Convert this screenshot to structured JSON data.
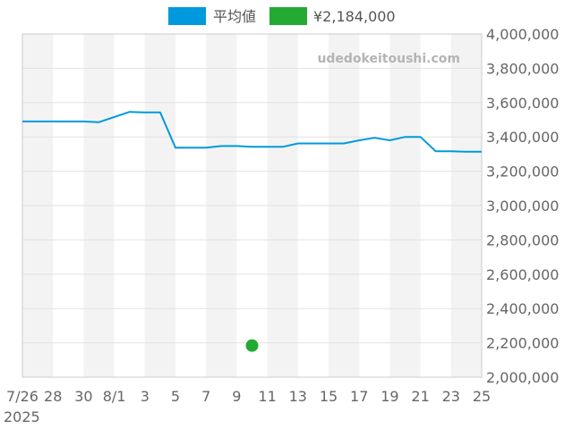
{
  "chart_data": {
    "type": "line",
    "watermark": "udedokeitoushi.com",
    "legend_position": "top",
    "grid": true,
    "ylim": [
      2000000,
      4000000
    ],
    "y_ticks": [
      "4,000,000",
      "3,800,000",
      "3,600,000",
      "3,400,000",
      "3,200,000",
      "3,000,000",
      "2,800,000",
      "2,600,000",
      "2,400,000",
      "2,200,000",
      "2,000,000"
    ],
    "y_tick_values": [
      4000000,
      3800000,
      3600000,
      3400000,
      3200000,
      3000000,
      2800000,
      2600000,
      2400000,
      2200000,
      2000000
    ],
    "x_tick_labels": [
      "7/26",
      "28",
      "30",
      "8/1",
      "3",
      "5",
      "7",
      "9",
      "11",
      "13",
      "15",
      "17",
      "19",
      "21",
      "23",
      "25"
    ],
    "x_year_label": "2025",
    "x_start": "2025-07-26",
    "x_end": "2025-08-25",
    "series": [
      {
        "name": "平均値",
        "color": "#0099dd",
        "points": [
          [
            "2025-07-26",
            3490000
          ],
          [
            "2025-07-27",
            3490000
          ],
          [
            "2025-07-28",
            3490000
          ],
          [
            "2025-07-29",
            3490000
          ],
          [
            "2025-07-30",
            3490000
          ],
          [
            "2025-07-31",
            3486000
          ],
          [
            "2025-08-01",
            3516000
          ],
          [
            "2025-08-02",
            3546000
          ],
          [
            "2025-08-03",
            3543000
          ],
          [
            "2025-08-04",
            3543000
          ],
          [
            "2025-08-05",
            3337000
          ],
          [
            "2025-08-06",
            3337000
          ],
          [
            "2025-08-07",
            3337000
          ],
          [
            "2025-08-08",
            3347000
          ],
          [
            "2025-08-09",
            3347000
          ],
          [
            "2025-08-10",
            3342000
          ],
          [
            "2025-08-11",
            3342000
          ],
          [
            "2025-08-12",
            3342000
          ],
          [
            "2025-08-13",
            3362000
          ],
          [
            "2025-08-14",
            3362000
          ],
          [
            "2025-08-15",
            3362000
          ],
          [
            "2025-08-16",
            3362000
          ],
          [
            "2025-08-17",
            3380000
          ],
          [
            "2025-08-18",
            3395000
          ],
          [
            "2025-08-19",
            3380000
          ],
          [
            "2025-08-20",
            3400000
          ],
          [
            "2025-08-21",
            3400000
          ],
          [
            "2025-08-22",
            3316000
          ],
          [
            "2025-08-23",
            3316000
          ],
          [
            "2025-08-24",
            3314000
          ],
          [
            "2025-08-25",
            3314000
          ]
        ]
      },
      {
        "name": "¥2,184,000",
        "color": "#22aa33",
        "points": [
          [
            "2025-08-10",
            2184000
          ]
        ]
      }
    ]
  }
}
